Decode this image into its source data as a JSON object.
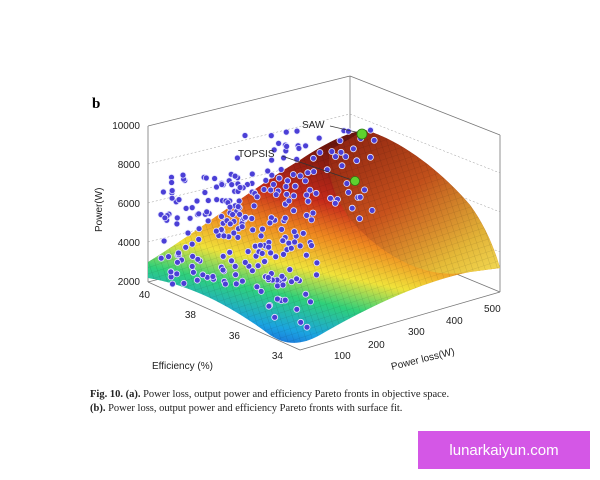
{
  "figure": {
    "panel_letter": "b",
    "caption": {
      "line1_label": "Fig. 10.",
      "line1_sub": "(a).",
      "line1_text": " Power loss, output power and efficiency Pareto fronts in objective space.",
      "line2_sub": "(b).",
      "line2_text": " Power loss, output power and efficiency Pareto fronts with surface fit."
    }
  },
  "watermark": {
    "text": "lunarkaiyun.com",
    "color": "#d457e6"
  },
  "chart_data": {
    "type": "surface-scatter-3d",
    "zlabel": "Power(W)",
    "xlabel": "Power loss(W)",
    "ylabel": "Efficiency (%)",
    "z_ticks": [
      "2000",
      "4000",
      "6000",
      "8000",
      "10000"
    ],
    "x_ticks": [
      "100",
      "200",
      "300",
      "400",
      "500"
    ],
    "y_ticks": [
      "40",
      "38",
      "36",
      "34"
    ],
    "zlim": [
      2000,
      10000
    ],
    "xlim": [
      50,
      520
    ],
    "ylim": [
      34,
      40
    ],
    "annotations": [
      {
        "text": "SAW",
        "marker_color": "#5fd12e"
      },
      {
        "text": "TOPSIS",
        "marker_color": "#5fd12e"
      }
    ],
    "points_color": "#4b3fd6"
  }
}
